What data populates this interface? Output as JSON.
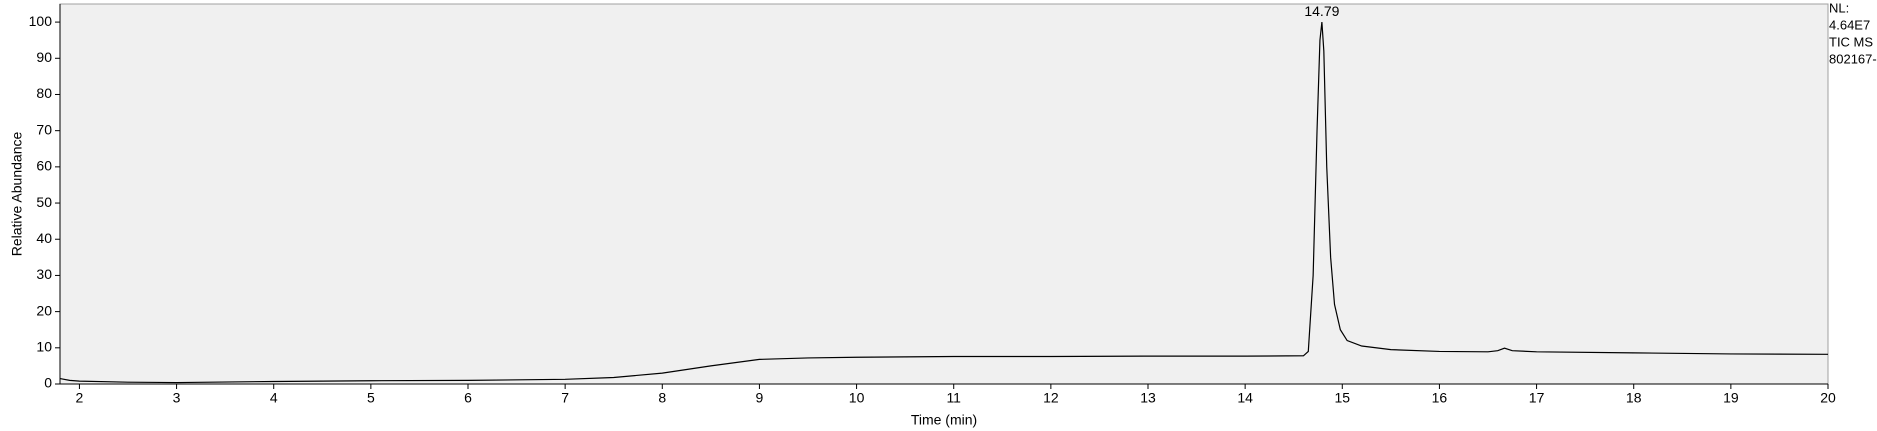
{
  "chart_data": {
    "type": "line",
    "x_label": "Time (min)",
    "y_label": "Relative Abundance",
    "info": [
      "NL:",
      "4.64E7",
      "TIC  MS",
      "802167-"
    ],
    "annotations": [
      {
        "text": "14.79",
        "x": 14.79,
        "y": 100
      }
    ],
    "color": "#000000",
    "plot_background": "#f0f0f0",
    "x": [
      1.8,
      1.9,
      2.0,
      2.5,
      3.0,
      4.0,
      5.0,
      6.0,
      7.0,
      7.5,
      8.0,
      8.5,
      9.0,
      9.5,
      10.0,
      11.0,
      12.0,
      13.0,
      14.0,
      14.6,
      14.65,
      14.7,
      14.74,
      14.77,
      14.79,
      14.81,
      14.84,
      14.88,
      14.92,
      14.98,
      15.05,
      15.2,
      15.5,
      16.0,
      16.5,
      16.6,
      16.67,
      16.75,
      17.0,
      18.0,
      19.0,
      20.0
    ],
    "values": [
      1.5,
      1.0,
      0.8,
      0.5,
      0.4,
      0.7,
      0.9,
      1.0,
      1.3,
      1.8,
      3.0,
      5.0,
      6.8,
      7.2,
      7.4,
      7.6,
      7.6,
      7.7,
      7.7,
      7.8,
      9,
      30,
      70,
      95,
      100,
      92,
      60,
      35,
      22,
      15,
      12,
      10.5,
      9.5,
      9.0,
      8.9,
      9.2,
      9.9,
      9.2,
      8.9,
      8.6,
      8.3,
      8.2
    ],
    "xlim": [
      1.8,
      20
    ],
    "ylim": [
      0,
      105
    ],
    "xticks": [
      2,
      3,
      4,
      5,
      6,
      7,
      8,
      9,
      10,
      11,
      12,
      13,
      14,
      15,
      16,
      17,
      18,
      19,
      20
    ],
    "yticks": [
      0,
      10,
      20,
      30,
      40,
      50,
      60,
      70,
      80,
      90,
      100
    ]
  }
}
